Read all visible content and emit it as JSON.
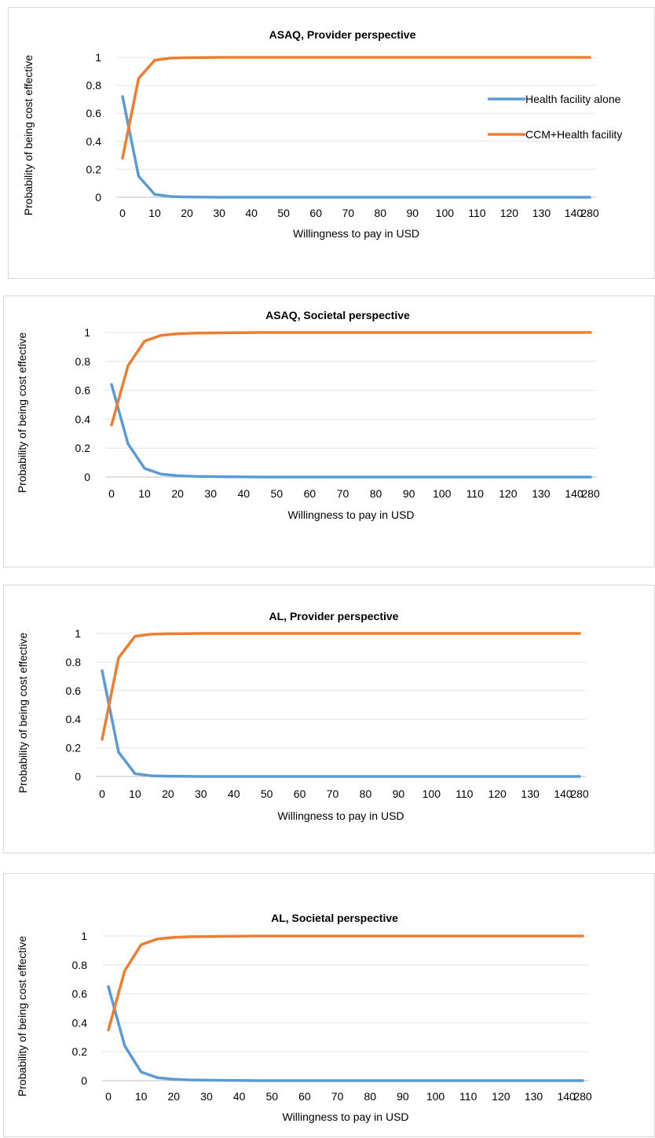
{
  "chart_data": [
    {
      "type": "line",
      "title": "ASAQ, Provider perspective",
      "xlabel": "Willingness to pay in USD",
      "ylabel": "Probability of being  cost effective",
      "x": [
        "0",
        "5",
        "10",
        "15",
        "20",
        "25",
        "30",
        "35",
        "40",
        "45",
        "50",
        "55",
        "60",
        "65",
        "70",
        "75",
        "80",
        "85",
        "90",
        "95",
        "100",
        "105",
        "110",
        "115",
        "120",
        "125",
        "130",
        "135",
        "140",
        "280"
      ],
      "x_tick_labels": [
        "0",
        "10",
        "20",
        "30",
        "40",
        "50",
        "60",
        "70",
        "80",
        "90",
        "100",
        "110",
        "120",
        "130",
        "140",
        "280"
      ],
      "y_ticks": [
        "0",
        "0.2",
        "0.4",
        "0.6",
        "0.8",
        "1"
      ],
      "ylim": [
        0,
        1
      ],
      "legend": "right",
      "series": [
        {
          "name": "Health facility alone",
          "color": "#5b9bd5",
          "values": [
            0.72,
            0.15,
            0.02,
            0.005,
            0.002,
            0.001,
            0,
            0,
            0,
            0,
            0,
            0,
            0,
            0,
            0,
            0,
            0,
            0,
            0,
            0,
            0,
            0,
            0,
            0,
            0,
            0,
            0,
            0,
            0,
            0
          ]
        },
        {
          "name": "CCM+Health facility",
          "color": "#ed7d31",
          "values": [
            0.28,
            0.85,
            0.98,
            0.995,
            0.998,
            0.999,
            1,
            1,
            1,
            1,
            1,
            1,
            1,
            1,
            1,
            1,
            1,
            1,
            1,
            1,
            1,
            1,
            1,
            1,
            1,
            1,
            1,
            1,
            1,
            1
          ]
        }
      ]
    },
    {
      "type": "line",
      "title": "ASAQ, Societal  perspective",
      "xlabel": "Willingness to pay in USD",
      "ylabel": "Probability of being  cost effective",
      "x": [
        "0",
        "5",
        "10",
        "15",
        "20",
        "25",
        "30",
        "35",
        "40",
        "45",
        "50",
        "55",
        "60",
        "65",
        "70",
        "75",
        "80",
        "85",
        "90",
        "95",
        "100",
        "105",
        "110",
        "115",
        "120",
        "125",
        "130",
        "135",
        "140",
        "280"
      ],
      "x_tick_labels": [
        "0",
        "10",
        "20",
        "30",
        "40",
        "50",
        "60",
        "70",
        "80",
        "90",
        "100",
        "110",
        "120",
        "130",
        "140",
        "280"
      ],
      "y_ticks": [
        "0",
        "0.2",
        "0.4",
        "0.6",
        "0.8",
        "1"
      ],
      "ylim": [
        0,
        1
      ],
      "series": [
        {
          "color": "#5b9bd5",
          "values": [
            0.64,
            0.23,
            0.06,
            0.02,
            0.01,
            0.005,
            0.003,
            0.002,
            0.001,
            0,
            0,
            0,
            0,
            0,
            0,
            0,
            0,
            0,
            0,
            0,
            0,
            0,
            0,
            0,
            0,
            0,
            0,
            0,
            0,
            0
          ]
        },
        {
          "color": "#ed7d31",
          "values": [
            0.36,
            0.77,
            0.94,
            0.98,
            0.99,
            0.995,
            0.997,
            0.998,
            0.999,
            1,
            1,
            1,
            1,
            1,
            1,
            1,
            1,
            1,
            1,
            1,
            1,
            1,
            1,
            1,
            1,
            1,
            1,
            1,
            1,
            1
          ]
        }
      ]
    },
    {
      "type": "line",
      "title": "AL, Provider perspective",
      "xlabel": "Willingness to pay in USD",
      "ylabel": "Probability of being  cost effective",
      "x": [
        "0",
        "5",
        "10",
        "15",
        "20",
        "25",
        "30",
        "35",
        "40",
        "45",
        "50",
        "55",
        "60",
        "65",
        "70",
        "75",
        "80",
        "85",
        "90",
        "95",
        "100",
        "105",
        "110",
        "115",
        "120",
        "125",
        "130",
        "135",
        "140",
        "280"
      ],
      "x_tick_labels": [
        "0",
        "10",
        "20",
        "30",
        "40",
        "50",
        "60",
        "70",
        "80",
        "90",
        "100",
        "110",
        "120",
        "130",
        "140",
        "280"
      ],
      "y_ticks": [
        "0",
        "0.2",
        "0.4",
        "0.6",
        "0.8",
        "1"
      ],
      "ylim": [
        0,
        1
      ],
      "series": [
        {
          "color": "#5b9bd5",
          "values": [
            0.74,
            0.17,
            0.02,
            0.005,
            0.002,
            0.001,
            0,
            0,
            0,
            0,
            0,
            0,
            0,
            0,
            0,
            0,
            0,
            0,
            0,
            0,
            0,
            0,
            0,
            0,
            0,
            0,
            0,
            0,
            0,
            0
          ]
        },
        {
          "color": "#ed7d31",
          "values": [
            0.26,
            0.83,
            0.98,
            0.995,
            0.998,
            0.999,
            1,
            1,
            1,
            1,
            1,
            1,
            1,
            1,
            1,
            1,
            1,
            1,
            1,
            1,
            1,
            1,
            1,
            1,
            1,
            1,
            1,
            1,
            1,
            1
          ]
        }
      ]
    },
    {
      "type": "line",
      "title": "AL, Societal  perspective",
      "xlabel": "Willingness to pay in USD",
      "ylabel": "Probability of being cost effective",
      "x": [
        "0",
        "5",
        "10",
        "15",
        "20",
        "25",
        "30",
        "35",
        "40",
        "45",
        "50",
        "55",
        "60",
        "65",
        "70",
        "75",
        "80",
        "85",
        "90",
        "95",
        "100",
        "105",
        "110",
        "115",
        "120",
        "125",
        "130",
        "135",
        "140",
        "280"
      ],
      "x_tick_labels": [
        "0",
        "10",
        "20",
        "30",
        "40",
        "50",
        "60",
        "70",
        "80",
        "90",
        "100",
        "110",
        "120",
        "130",
        "140",
        "280"
      ],
      "y_ticks": [
        "0",
        "0.2",
        "0.4",
        "0.6",
        "0.8",
        "1"
      ],
      "ylim": [
        0,
        1
      ],
      "series": [
        {
          "color": "#5b9bd5",
          "values": [
            0.65,
            0.24,
            0.06,
            0.02,
            0.01,
            0.005,
            0.003,
            0.002,
            0.001,
            0,
            0,
            0,
            0,
            0,
            0,
            0,
            0,
            0,
            0,
            0,
            0,
            0,
            0,
            0,
            0,
            0,
            0,
            0,
            0,
            0
          ]
        },
        {
          "color": "#ed7d31",
          "values": [
            0.35,
            0.76,
            0.94,
            0.98,
            0.99,
            0.995,
            0.997,
            0.998,
            0.999,
            1,
            1,
            1,
            1,
            1,
            1,
            1,
            1,
            1,
            1,
            1,
            1,
            1,
            1,
            1,
            1,
            1,
            1,
            1,
            1,
            1
          ]
        }
      ]
    }
  ]
}
